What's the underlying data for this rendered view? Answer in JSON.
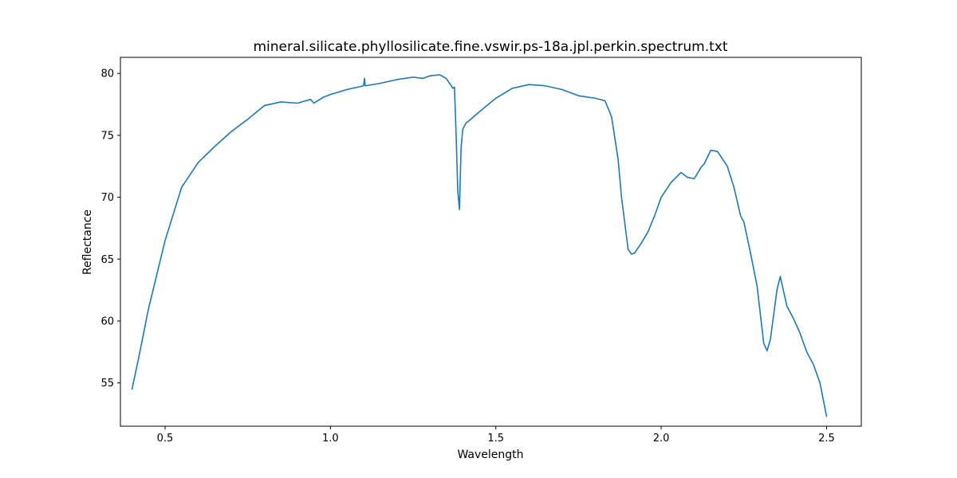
{
  "chart_data": {
    "type": "line",
    "title": "mineral.silicate.phyllosilicate.fine.vswir.ps-18a.jpl.perkin.spectrum.txt",
    "xlabel": "Wavelength",
    "ylabel": "Reflectance",
    "xlim": [
      0.365,
      2.605
    ],
    "ylim": [
      51.5,
      81.3
    ],
    "x_ticks": [
      0.5,
      1.0,
      1.5,
      2.0,
      2.5
    ],
    "x_tick_labels": [
      "0.5",
      "1.0",
      "1.5",
      "2.0",
      "2.5"
    ],
    "y_ticks": [
      55,
      60,
      65,
      70,
      75,
      80
    ],
    "y_tick_labels": [
      "55",
      "60",
      "65",
      "70",
      "75",
      "80"
    ],
    "grid": false,
    "legend": "none",
    "series": [
      {
        "color": "#1f77b4",
        "x": [
          0.4,
          0.42,
          0.45,
          0.5,
          0.55,
          0.6,
          0.65,
          0.7,
          0.75,
          0.8,
          0.85,
          0.9,
          0.94,
          0.95,
          0.98,
          1.0,
          1.05,
          1.1,
          1.103,
          1.105,
          1.15,
          1.2,
          1.25,
          1.28,
          1.3,
          1.33,
          1.35,
          1.37,
          1.375,
          1.38,
          1.385,
          1.39,
          1.395,
          1.4,
          1.41,
          1.42,
          1.45,
          1.5,
          1.55,
          1.6,
          1.65,
          1.7,
          1.75,
          1.8,
          1.83,
          1.85,
          1.87,
          1.88,
          1.9,
          1.91,
          1.92,
          1.94,
          1.96,
          1.98,
          2.0,
          2.03,
          2.06,
          2.08,
          2.1,
          2.12,
          2.13,
          2.15,
          2.17,
          2.2,
          2.22,
          2.24,
          2.25,
          2.27,
          2.29,
          2.31,
          2.32,
          2.33,
          2.35,
          2.36,
          2.38,
          2.4,
          2.42,
          2.44,
          2.46,
          2.48,
          2.5
        ],
        "y": [
          54.5,
          57.0,
          61.0,
          66.5,
          70.8,
          72.8,
          74.1,
          75.3,
          76.3,
          77.4,
          77.7,
          77.6,
          77.9,
          77.6,
          78.1,
          78.3,
          78.7,
          79.0,
          79.6,
          79.0,
          79.2,
          79.5,
          79.7,
          79.6,
          79.8,
          79.9,
          79.6,
          78.8,
          78.9,
          75.0,
          70.5,
          69.0,
          74.0,
          75.5,
          76.0,
          76.2,
          76.9,
          78.0,
          78.8,
          79.1,
          79.0,
          78.7,
          78.2,
          78.0,
          77.8,
          76.5,
          73.0,
          70.0,
          65.8,
          65.4,
          65.5,
          66.3,
          67.2,
          68.5,
          70.0,
          71.2,
          72.0,
          71.6,
          71.5,
          72.4,
          72.7,
          73.8,
          73.7,
          72.5,
          70.8,
          68.5,
          68.0,
          65.5,
          62.8,
          58.2,
          57.6,
          58.5,
          62.5,
          63.6,
          61.2,
          60.2,
          59.0,
          57.5,
          56.5,
          55.0,
          52.3
        ]
      }
    ]
  }
}
